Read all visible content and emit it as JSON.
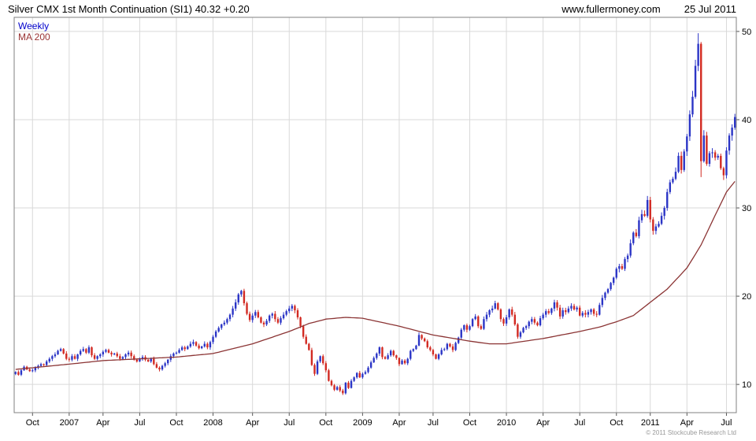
{
  "header": {
    "title": "Silver CMX 1st Month Continuation (SI1) 40.32 +0.20",
    "website": "www.fullermoney.com",
    "date": "25 Jul 2011"
  },
  "legend": {
    "series": "Weekly",
    "ma": "MA 200"
  },
  "footer": {
    "copyright": "© 2011 Stockcube Research Ltd"
  },
  "colors": {
    "up": "#2b35c6",
    "down": "#d22a22",
    "ma": "#8b3434",
    "grid": "#d9d9d9",
    "border": "#808080",
    "axis_text": "#000000",
    "legend_weekly": "#0000cc",
    "legend_ma": "#993333"
  },
  "chart_data": {
    "type": "candlestick-weekly",
    "title": "Silver CMX 1st Month Continuation (SI1)",
    "instrument": "SI1",
    "last_price": 40.32,
    "change": "+0.20",
    "as_of": "25 Jul 2011",
    "ylim": [
      6.8,
      51.6
    ],
    "y_ticks": [
      10,
      20,
      30,
      40,
      50
    ],
    "x_ticks": [
      {
        "label": "Oct",
        "week": 6
      },
      {
        "label": "2007",
        "week": 19
      },
      {
        "label": "Apr",
        "week": 31
      },
      {
        "label": "Jul",
        "week": 44
      },
      {
        "label": "Oct",
        "week": 57
      },
      {
        "label": "2008",
        "week": 70
      },
      {
        "label": "Apr",
        "week": 84
      },
      {
        "label": "Jul",
        "week": 97
      },
      {
        "label": "Oct",
        "week": 110
      },
      {
        "label": "2009",
        "week": 123
      },
      {
        "label": "Apr",
        "week": 136
      },
      {
        "label": "Jul",
        "week": 148
      },
      {
        "label": "Oct",
        "week": 161
      },
      {
        "label": "2010",
        "week": 174
      },
      {
        "label": "Apr",
        "week": 187
      },
      {
        "label": "Jul",
        "week": 200
      },
      {
        "label": "Oct",
        "week": 213
      },
      {
        "label": "2011",
        "week": 225
      },
      {
        "label": "Apr",
        "week": 238
      },
      {
        "label": "Jul",
        "week": 252
      }
    ],
    "weekly_closes": [
      11.4,
      11.1,
      11.6,
      12.0,
      11.7,
      11.5,
      11.6,
      11.9,
      12.1,
      12.3,
      12.2,
      12.6,
      12.9,
      13.2,
      13.4,
      13.8,
      14.0,
      13.5,
      12.9,
      12.8,
      13.2,
      12.9,
      13.4,
      13.8,
      14.0,
      13.6,
      14.2,
      13.3,
      12.9,
      13.2,
      13.4,
      13.7,
      13.9,
      13.6,
      13.4,
      13.5,
      13.2,
      12.9,
      13.1,
      13.4,
      13.6,
      13.2,
      12.8,
      12.6,
      12.9,
      13.1,
      12.8,
      12.6,
      12.9,
      12.3,
      11.9,
      11.7,
      12.1,
      12.4,
      12.8,
      13.2,
      13.5,
      13.6,
      13.9,
      14.2,
      14.0,
      14.3,
      14.6,
      14.8,
      14.4,
      14.1,
      14.3,
      14.6,
      14.2,
      14.8,
      15.4,
      16.0,
      16.4,
      16.8,
      17.0,
      17.4,
      17.9,
      18.6,
      19.3,
      20.2,
      20.6,
      19.2,
      18.0,
      17.3,
      17.8,
      18.2,
      17.6,
      17.0,
      16.8,
      17.2,
      17.8,
      18.0,
      17.4,
      17.0,
      17.5,
      17.9,
      18.3,
      18.6,
      18.9,
      18.4,
      17.6,
      16.6,
      15.4,
      14.6,
      13.9,
      12.2,
      11.2,
      12.6,
      13.2,
      12.4,
      11.6,
      10.4,
      9.9,
      9.4,
      9.7,
      9.3,
      9.0,
      10.2,
      9.6,
      10.4,
      10.8,
      11.3,
      10.8,
      11.2,
      11.4,
      11.9,
      12.5,
      13.0,
      13.5,
      14.2,
      13.1,
      12.9,
      13.3,
      13.8,
      13.3,
      13.0,
      12.3,
      12.7,
      12.4,
      12.9,
      13.8,
      14.0,
      14.4,
      15.6,
      15.2,
      14.9,
      14.2,
      13.9,
      13.4,
      12.9,
      13.4,
      13.9,
      14.0,
      14.6,
      14.3,
      13.9,
      14.7,
      15.3,
      16.2,
      16.7,
      16.2,
      16.6,
      17.4,
      17.7,
      16.6,
      16.3,
      17.4,
      17.9,
      18.4,
      18.6,
      19.2,
      18.5,
      17.4,
      16.9,
      17.6,
      18.5,
      17.9,
      16.8,
      15.4,
      15.9,
      16.4,
      16.6,
      17.1,
      17.4,
      17.0,
      16.7,
      17.5,
      17.9,
      18.3,
      18.1,
      18.6,
      19.3,
      18.7,
      17.7,
      18.4,
      18.2,
      18.6,
      18.9,
      18.5,
      18.7,
      17.8,
      18.1,
      17.9,
      18.2,
      18.5,
      18.0,
      17.9,
      19.0,
      19.8,
      20.4,
      20.8,
      21.5,
      22.1,
      23.1,
      23.4,
      23.1,
      24.2,
      24.6,
      26.0,
      27.2,
      26.8,
      28.6,
      29.3,
      29.1,
      30.9,
      28.7,
      27.4,
      27.9,
      28.2,
      29.1,
      30.0,
      31.8,
      32.9,
      33.3,
      34.1,
      35.9,
      34.3,
      36.4,
      38.1,
      40.6,
      42.6,
      46.1,
      48.6,
      35.3,
      38.2,
      35.0,
      36.2,
      36.3,
      35.7,
      35.9,
      34.5,
      33.7,
      36.5,
      38.2,
      39.1,
      40.3
    ],
    "wick_overrides": [
      {
        "week": 242,
        "high": 49.8
      },
      {
        "week": 243,
        "high": 48.8,
        "low": 33.5
      },
      {
        "week": 116,
        "low": 8.8
      }
    ],
    "ma200_points": [
      [
        0,
        11.7
      ],
      [
        19,
        12.3
      ],
      [
        31,
        12.7
      ],
      [
        44,
        12.9
      ],
      [
        57,
        13.1
      ],
      [
        70,
        13.5
      ],
      [
        84,
        14.6
      ],
      [
        97,
        16.0
      ],
      [
        104,
        16.9
      ],
      [
        110,
        17.4
      ],
      [
        117,
        17.6
      ],
      [
        123,
        17.5
      ],
      [
        136,
        16.6
      ],
      [
        148,
        15.6
      ],
      [
        161,
        14.9
      ],
      [
        168,
        14.6
      ],
      [
        174,
        14.6
      ],
      [
        187,
        15.2
      ],
      [
        200,
        16.0
      ],
      [
        207,
        16.5
      ],
      [
        213,
        17.1
      ],
      [
        219,
        17.8
      ],
      [
        225,
        19.3
      ],
      [
        231,
        20.8
      ],
      [
        238,
        23.2
      ],
      [
        243,
        25.8
      ],
      [
        247,
        28.5
      ],
      [
        252,
        31.8
      ],
      [
        255,
        33.0
      ]
    ]
  }
}
